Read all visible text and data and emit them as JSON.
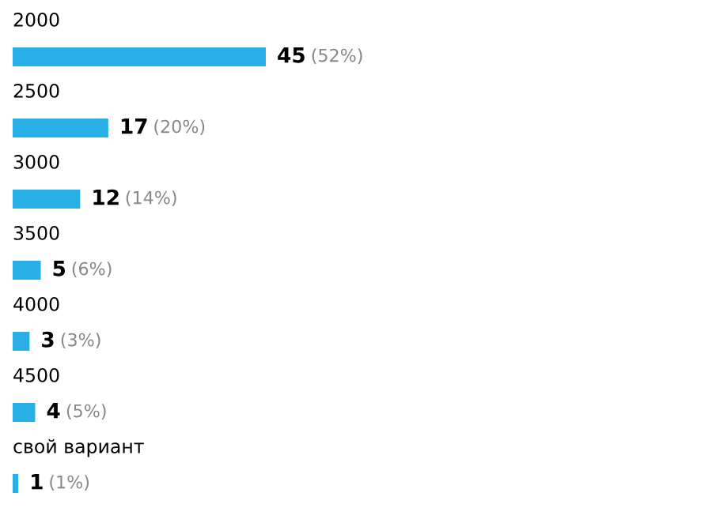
{
  "chart_data": {
    "type": "bar",
    "orientation": "horizontal",
    "categories": [
      "2000",
      "2500",
      "3000",
      "3500",
      "4000",
      "4500",
      "свой вариант"
    ],
    "values": [
      45,
      17,
      12,
      5,
      3,
      4,
      1
    ],
    "value_labels": [
      "45 (52%)",
      "17 (20%)",
      "12 (14%)",
      "5 (6%)",
      "3 (3%)",
      "4 (5%)",
      "1 (1%)"
    ],
    "color": "#2aaee6"
  }
}
